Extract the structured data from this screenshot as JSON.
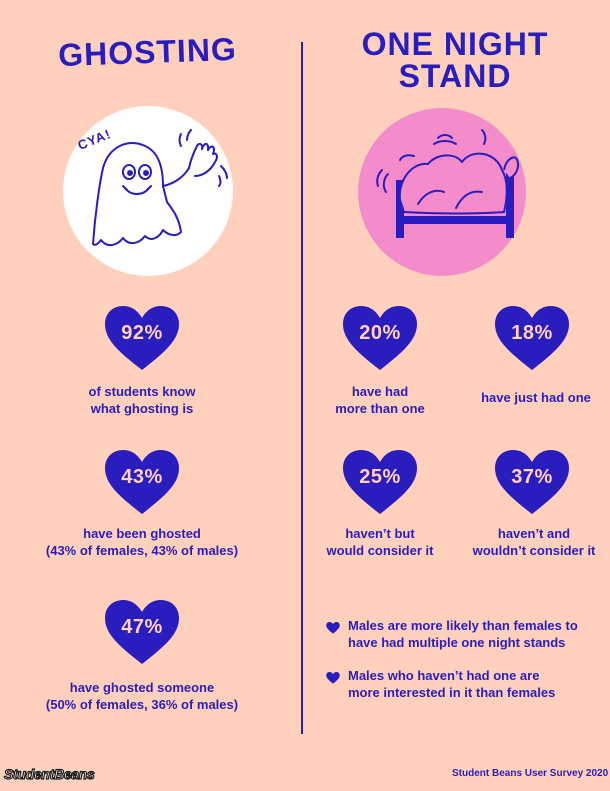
{
  "colors": {
    "background": "#FFD1BD",
    "accent": "#2A1DBE",
    "pink": "#F48CCB",
    "white": "#FFFFFF"
  },
  "ghosting": {
    "title": "GHOSTING",
    "illustration_text": "CYA!",
    "stats": [
      {
        "percent": "92%",
        "lines": [
          "of students know",
          "what ghosting is"
        ]
      },
      {
        "percent": "43%",
        "lines": [
          "have been ghosted",
          "(43% of females, 43% of males)"
        ]
      },
      {
        "percent": "47%",
        "lines": [
          "have ghosted someone",
          "(50% of females, 36% of males)"
        ]
      }
    ]
  },
  "one_night_stand": {
    "title_line1": "ONE NIGHT",
    "title_line2": "STAND",
    "stats": [
      {
        "percent": "20%",
        "lines": [
          "have had",
          "more than one"
        ]
      },
      {
        "percent": "18%",
        "lines": [
          "have just had one"
        ]
      },
      {
        "percent": "25%",
        "lines": [
          "haven’t but",
          "would consider it"
        ]
      },
      {
        "percent": "37%",
        "lines": [
          "haven’t and",
          "wouldn’t consider it"
        ]
      }
    ],
    "notes": [
      {
        "lines": [
          "Males are more likely than females to",
          "have had multiple one night stands"
        ]
      },
      {
        "lines": [
          "Males who haven’t had one are",
          "more interested in it than females"
        ]
      }
    ]
  },
  "footer": {
    "brand": "StudentBeans",
    "source": "Student Beans User Survey 2020"
  }
}
